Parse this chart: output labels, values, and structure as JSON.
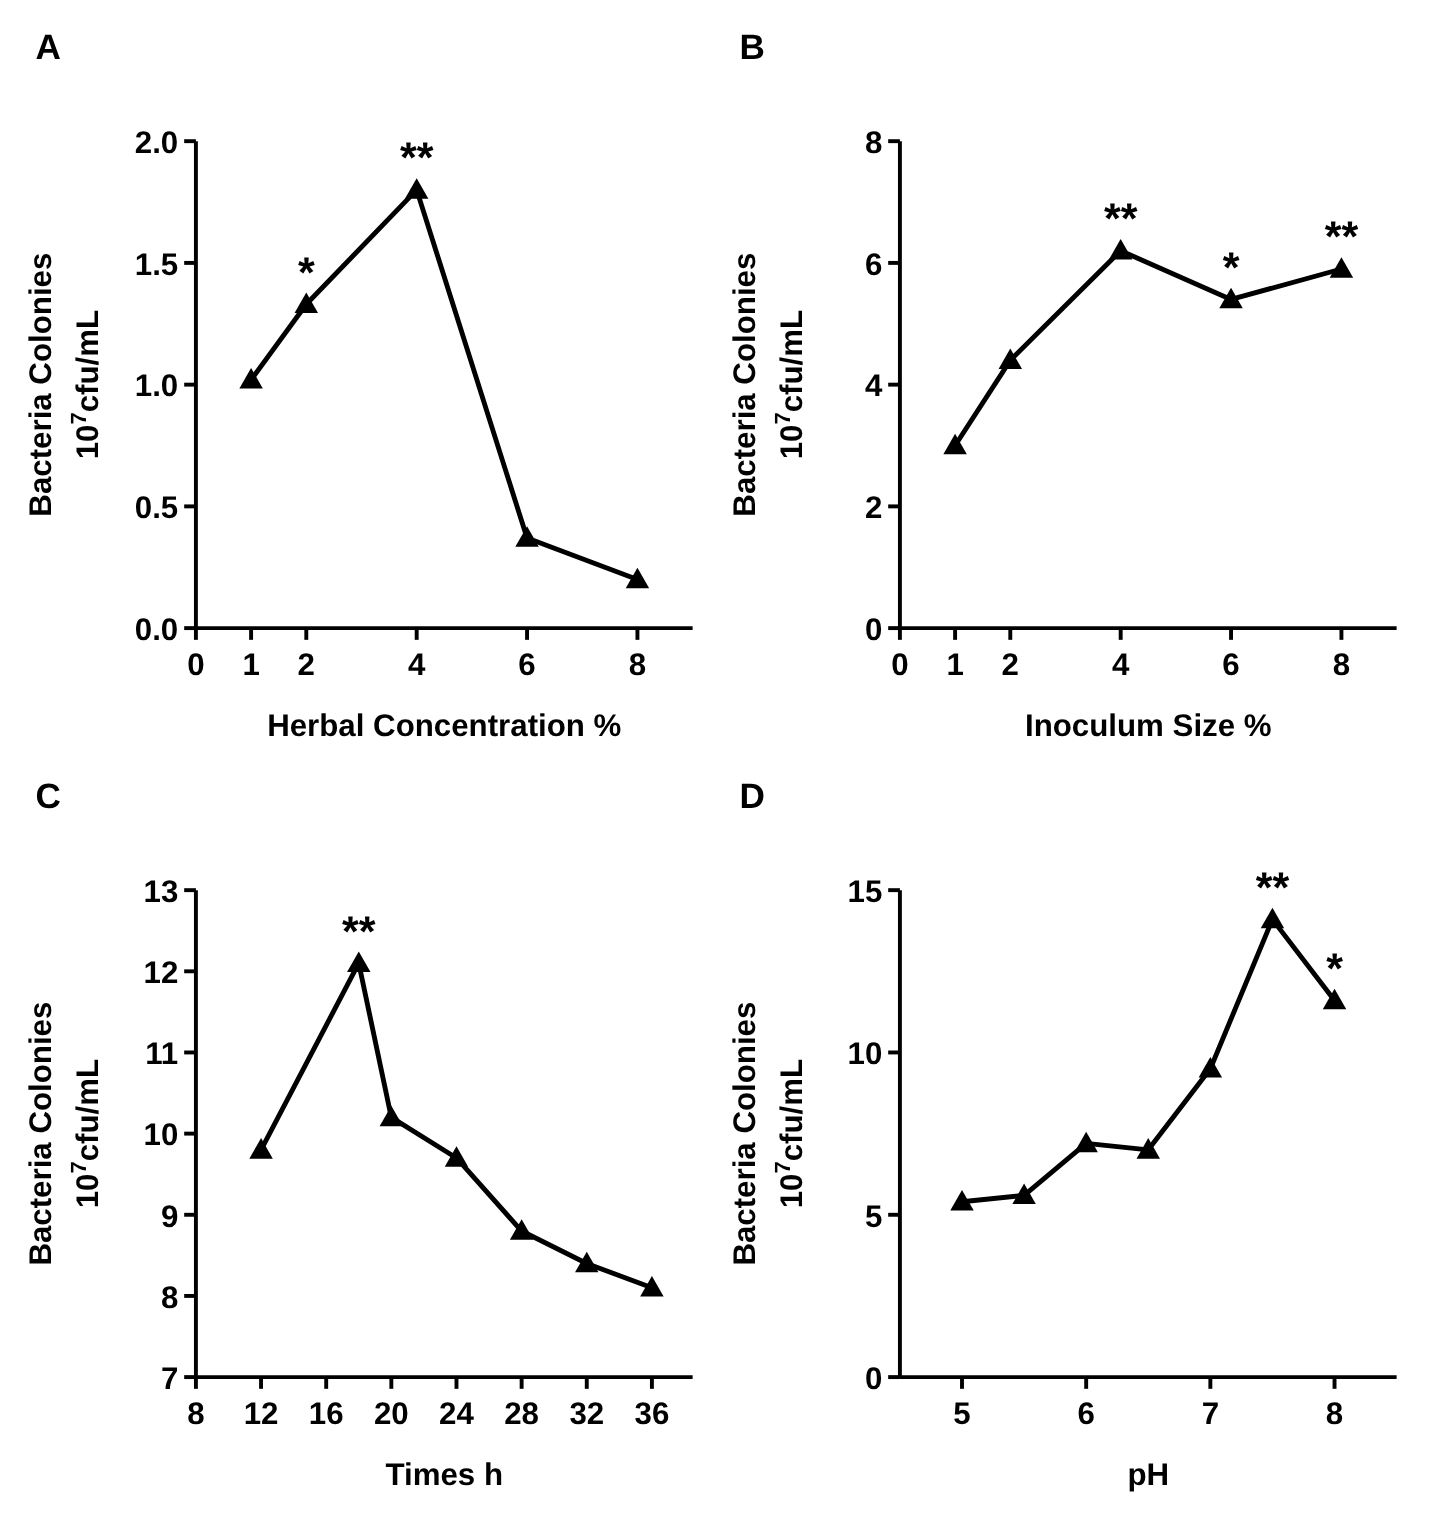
{
  "chart_data": [
    {
      "type": "line",
      "title": "A",
      "xlabel": "Herbal Concentration %",
      "ylabel": "Bacteria Colonies\n10$^{7}$cfu/mL",
      "x": [
        1,
        2,
        4,
        6,
        8
      ],
      "series": [
        {
          "color": "#000000",
          "values": [
            1.02,
            1.33,
            1.8,
            0.37,
            0.2
          ]
        }
      ],
      "xlim": [
        0,
        9
      ],
      "xticks": [
        0,
        1,
        2,
        4,
        6,
        8
      ],
      "ylim": [
        0,
        2
      ],
      "yticks": [
        {
          "value": 0,
          "label": "0.0"
        },
        {
          "value": 0.5,
          "label": "0.5"
        },
        {
          "value": 1,
          "label": "1.0"
        },
        {
          "value": 1.5,
          "label": "1.5"
        },
        {
          "value": 2,
          "label": "2.0"
        }
      ],
      "marker": "triangle",
      "annotations": [
        {
          "text": "*",
          "x": 2,
          "y": 1.33
        },
        {
          "text": "**",
          "x": 4,
          "y": 1.8
        }
      ]
    },
    {
      "type": "line",
      "title": "B",
      "xlabel": "Inoculum Size %",
      "ylabel": "Bacteria Colonies\n10$^{7}$cfu/mL",
      "x": [
        1,
        2,
        4,
        6,
        8
      ],
      "series": [
        {
          "color": "#000000",
          "values": [
            3.0,
            4.4,
            6.2,
            5.4,
            5.9
          ]
        }
      ],
      "xlim": [
        0,
        9
      ],
      "xticks": [
        0,
        1,
        2,
        4,
        6,
        8
      ],
      "ylim": [
        0,
        8
      ],
      "yticks": [
        0,
        2,
        4,
        6,
        8
      ],
      "marker": "triangle",
      "annotations": [
        {
          "text": "**",
          "x": 4,
          "y": 6.2
        },
        {
          "text": "*",
          "x": 6,
          "y": 5.4
        },
        {
          "text": "**",
          "x": 8,
          "y": 5.9
        }
      ]
    },
    {
      "type": "line",
      "title": "C",
      "xlabel": "Times h",
      "ylabel": "Bacteria Colonies\n10$^{7}$cfu/mL",
      "x": [
        12,
        18,
        20,
        24,
        28,
        32,
        36
      ],
      "series": [
        {
          "color": "#000000",
          "values": [
            9.8,
            12.1,
            10.2,
            9.7,
            8.8,
            8.4,
            8.1
          ]
        }
      ],
      "xlim": [
        8,
        38.5
      ],
      "xticks": [
        8,
        12,
        16,
        20,
        24,
        28,
        32,
        36
      ],
      "ylim": [
        7,
        13
      ],
      "yticks": [
        7,
        8,
        9,
        10,
        11,
        12,
        13
      ],
      "marker": "triangle",
      "annotations": [
        {
          "text": "**",
          "x": 18,
          "y": 12.1
        }
      ]
    },
    {
      "type": "line",
      "title": "D",
      "xlabel": "pH",
      "ylabel": "Bacteria Colonies\n10$^{7}$cfu/mL",
      "x": [
        5,
        5.5,
        6,
        6.5,
        7,
        7.5,
        8
      ],
      "series": [
        {
          "color": "#000000",
          "values": [
            5.4,
            5.6,
            7.2,
            7.0,
            9.5,
            14.1,
            11.6
          ]
        }
      ],
      "xlim": [
        4.5,
        8.5
      ],
      "xticks": [
        5,
        6,
        7,
        8
      ],
      "ylim": [
        0,
        15
      ],
      "yticks": [
        0,
        5,
        10,
        15
      ],
      "marker": "triangle",
      "annotations": [
        {
          "text": "**",
          "x": 7.5,
          "y": 14.1
        },
        {
          "text": "*",
          "x": 8,
          "y": 11.6
        }
      ]
    }
  ]
}
